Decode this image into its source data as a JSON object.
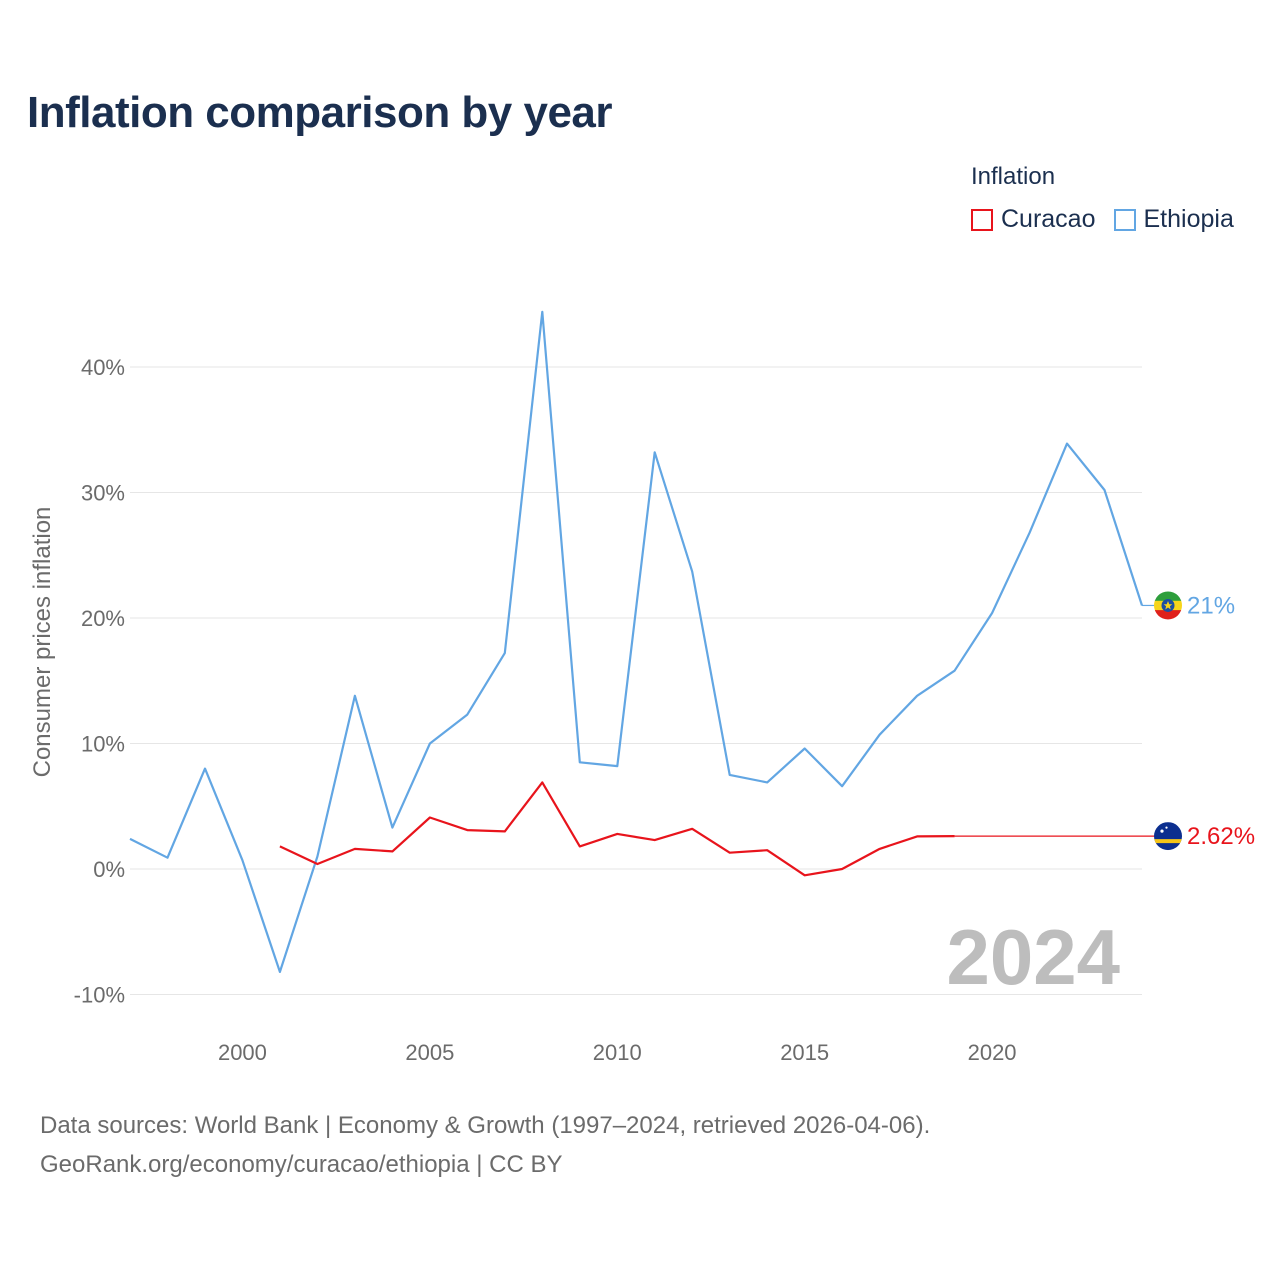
{
  "title": "Inflation comparison by year",
  "legend": {
    "title": "Inflation",
    "items": [
      {
        "label": "Curacao",
        "color": "#e8141c"
      },
      {
        "label": "Ethiopia",
        "color": "#62a6e3"
      }
    ]
  },
  "footer": {
    "line1": "Data sources: World Bank | Economy & Growth (1997–2024, retrieved 2026-04-06).",
    "line2": "GeoRank.org/economy/curacao/ethiopia | CC BY"
  },
  "chart_data": {
    "type": "line",
    "title": "Inflation comparison by year",
    "xlabel": "",
    "ylabel": "Consumer prices inflation",
    "xlim": [
      1997,
      2024
    ],
    "ylim": [
      -10,
      45
    ],
    "x_ticks": [
      2000,
      2005,
      2010,
      2015,
      2020
    ],
    "x_tick_labels": [
      "2000",
      "2005",
      "2010",
      "2015",
      "2020"
    ],
    "y_ticks": [
      -10,
      0,
      10,
      20,
      30,
      40
    ],
    "y_tick_labels": [
      "-10%",
      "0%",
      "10%",
      "20%",
      "30%",
      "40%"
    ],
    "grid": true,
    "legend_position": "top-right",
    "annotation": "2024",
    "series": [
      {
        "name": "Ethiopia",
        "color": "#62a6e3",
        "end_label": "21%",
        "points": [
          [
            1997,
            2.4
          ],
          [
            1998,
            0.9
          ],
          [
            1999,
            8.0
          ],
          [
            2000,
            0.7
          ],
          [
            2001,
            -8.2
          ],
          [
            2002,
            1.0
          ],
          [
            2003,
            13.8
          ],
          [
            2004,
            3.3
          ],
          [
            2005,
            10.0
          ],
          [
            2006,
            12.3
          ],
          [
            2007,
            17.2
          ],
          [
            2008,
            44.4
          ],
          [
            2009,
            8.5
          ],
          [
            2010,
            8.2
          ],
          [
            2011,
            33.2
          ],
          [
            2012,
            23.7
          ],
          [
            2013,
            7.5
          ],
          [
            2014,
            6.9
          ],
          [
            2015,
            9.6
          ],
          [
            2016,
            6.6
          ],
          [
            2017,
            10.7
          ],
          [
            2018,
            13.8
          ],
          [
            2019,
            15.8
          ],
          [
            2020,
            20.4
          ],
          [
            2021,
            26.8
          ],
          [
            2022,
            33.9
          ],
          [
            2023,
            30.2
          ],
          [
            2024,
            21.0
          ]
        ]
      },
      {
        "name": "Curacao",
        "color": "#e8141c",
        "end_label": "2.62%",
        "points": [
          [
            2001,
            1.8
          ],
          [
            2002,
            0.4
          ],
          [
            2003,
            1.6
          ],
          [
            2004,
            1.4
          ],
          [
            2005,
            4.1
          ],
          [
            2006,
            3.1
          ],
          [
            2007,
            3.0
          ],
          [
            2008,
            6.9
          ],
          [
            2009,
            1.8
          ],
          [
            2010,
            2.8
          ],
          [
            2011,
            2.3
          ],
          [
            2012,
            3.2
          ],
          [
            2013,
            1.3
          ],
          [
            2014,
            1.5
          ],
          [
            2015,
            -0.5
          ],
          [
            2016,
            0.0
          ],
          [
            2017,
            1.6
          ],
          [
            2018,
            2.6
          ],
          [
            2019,
            2.62
          ]
        ],
        "carried_forward_to": 2024,
        "carried_value": 2.62
      }
    ]
  }
}
